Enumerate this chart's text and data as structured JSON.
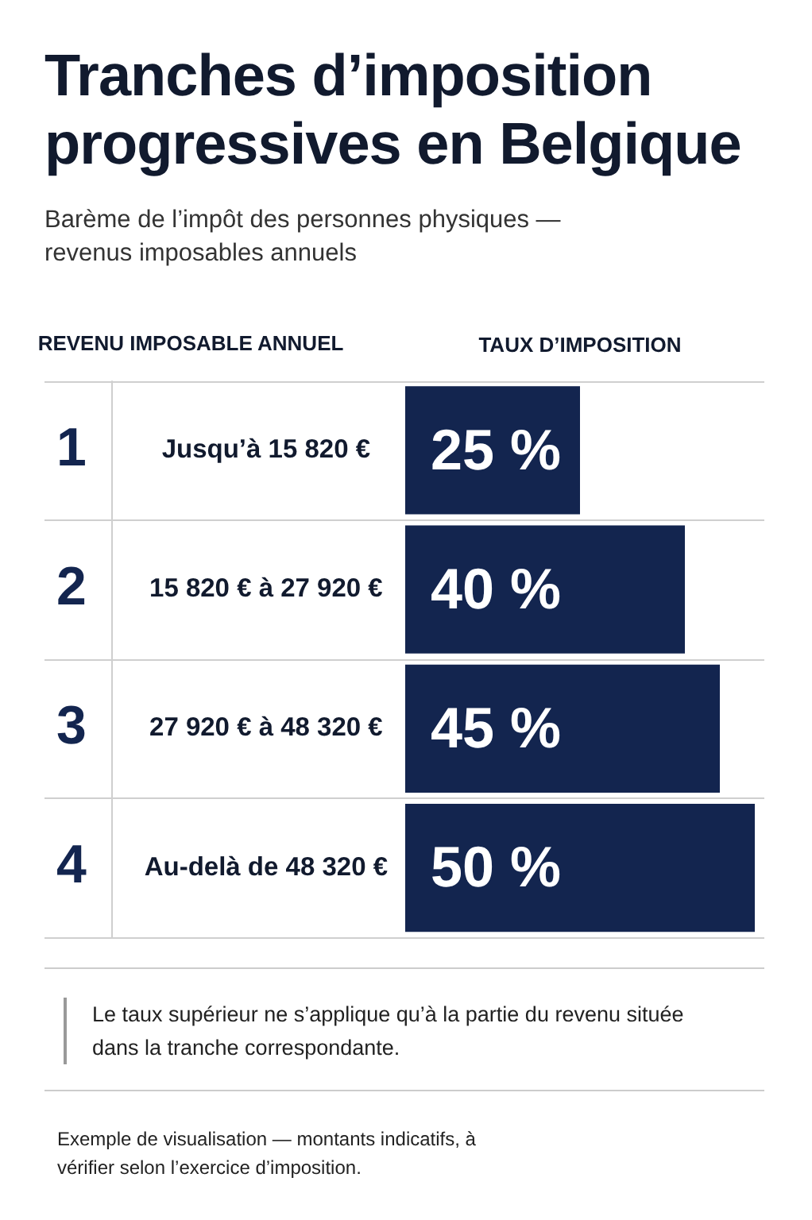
{
  "chart_data": {
    "type": "bar",
    "orientation": "horizontal",
    "title": "Tranches d’imposition progressives en Belgique",
    "subtitle": "Barème de l’impôt des personnes physiques — revenus imposables annuels",
    "ylabel": "REVENU IMPOSABLE ANNUEL",
    "xlabel": "TAUX D’IMPOSITION",
    "categories": [
      "Jusqu’à 15 820 €",
      "15 820 € à 27 920 €",
      "27 920 € à 48 320 €",
      "Au-delà de 48 320 €"
    ],
    "values": [
      25,
      40,
      45,
      50
    ],
    "color": "#13254f",
    "value_labels": [
      "25 %",
      "40 %",
      "45 %",
      "50 %"
    ],
    "tick_labels": "y",
    "annotations": [
      "1",
      "2",
      "3",
      "4",
      "Le taux supérieur ne s’applique qu’à la partie du revenu située dans la tranche correspondante.",
      "Exemple de visualisation — montants indicatifs, à vérifier selon l’exercice d’imposition."
    ]
  }
}
